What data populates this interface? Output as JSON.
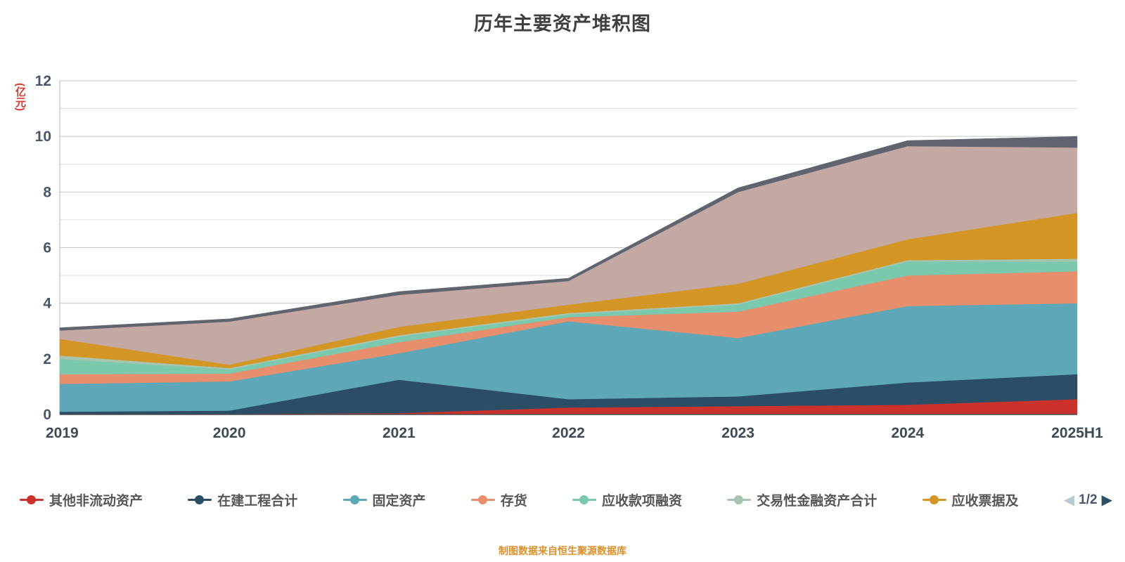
{
  "title": "历年主要资产堆积图",
  "footer": "制图数据来自恒生聚源数据库",
  "y_axis": {
    "unit_label": "(亿元)",
    "ticks": [
      0,
      2,
      4,
      6,
      8,
      10,
      12
    ],
    "min": 0,
    "max": 12
  },
  "legend": {
    "page_indicator": "1/2",
    "prev_icon": "◀",
    "next_icon": "▶"
  },
  "colors": {
    "title_text": "#3f3f3f",
    "axis_text": "#47566a",
    "unit_label": "#d23a2e",
    "footer_text": "#d9912c",
    "grid_major": "#c6c6c6",
    "grid_minor": "#dddddd"
  },
  "chart_data": {
    "type": "area",
    "stacked": true,
    "title": "历年主要资产堆积图",
    "xlabel": "",
    "ylabel": "(亿元)",
    "ylim": [
      0,
      12
    ],
    "grid": true,
    "legend_position": "bottom",
    "x": [
      "2019",
      "2020",
      "2021",
      "2022",
      "2023",
      "2024",
      "2025H1"
    ],
    "series": [
      {
        "name": "其他非流动资产",
        "color": "#cc322c",
        "legend_page": 1,
        "values": [
          0.02,
          0.02,
          0.05,
          0.25,
          0.3,
          0.35,
          0.55
        ]
      },
      {
        "name": "在建工程合计",
        "color": "#2c4d66",
        "legend_page": 1,
        "values": [
          0.08,
          0.12,
          1.2,
          0.3,
          0.35,
          0.8,
          0.9
        ]
      },
      {
        "name": "固定资产",
        "color": "#5ea7b8",
        "legend_page": 1,
        "values": [
          1.0,
          1.05,
          0.95,
          2.8,
          2.1,
          2.75,
          2.55
        ]
      },
      {
        "name": "存货",
        "color": "#e78e6c",
        "legend_page": 1,
        "values": [
          0.35,
          0.28,
          0.4,
          0.15,
          0.95,
          1.1,
          1.15
        ]
      },
      {
        "name": "应收款项融资",
        "color": "#7ac9ae",
        "legend_page": 1,
        "values": [
          0.55,
          0.15,
          0.2,
          0.1,
          0.25,
          0.5,
          0.35
        ]
      },
      {
        "name": "交易性金融资产合计",
        "color": "#a6c4b0",
        "legend_page": 1,
        "values": [
          0.12,
          0.05,
          0.05,
          0.05,
          0.05,
          0.05,
          0.1
        ]
      },
      {
        "name": "应收票据及",
        "color": "#d39523",
        "legend_page": 1,
        "values": [
          0.6,
          0.12,
          0.3,
          0.3,
          0.7,
          0.75,
          1.65
        ]
      },
      {
        "name": "",
        "color": "#c3a8a4",
        "legend_page": 2,
        "values": [
          0.3,
          1.55,
          1.15,
          0.85,
          3.3,
          3.35,
          2.35
        ]
      },
      {
        "name": "",
        "color": "#60646e",
        "legend_page": 2,
        "values": [
          0.1,
          0.1,
          0.12,
          0.1,
          0.15,
          0.2,
          0.4
        ]
      }
    ]
  }
}
